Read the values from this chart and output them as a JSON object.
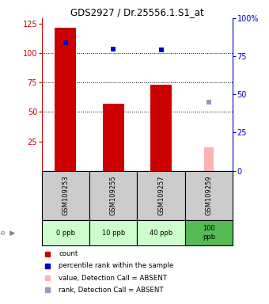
{
  "title": "GDS2927 / Dr.25556.1.S1_at",
  "samples": [
    "GSM109253",
    "GSM109255",
    "GSM109257",
    "GSM109259"
  ],
  "doses": [
    "0 ppb",
    "10 ppb",
    "40 ppb",
    "100\nppb"
  ],
  "bar_values": [
    122,
    57,
    73,
    null
  ],
  "bar_colors": [
    "#cc0000",
    "#cc0000",
    "#cc0000",
    null
  ],
  "absent_bar_value": 20,
  "absent_bar_idx": 3,
  "absent_bar_color": "#ffb3b3",
  "rank_values": [
    84,
    80,
    79,
    null
  ],
  "rank_indices": [
    0,
    1,
    2
  ],
  "rank_color": "#0000cc",
  "absent_rank_value": 45,
  "absent_rank_idx": 3,
  "absent_rank_color": "#9999bb",
  "ylim_left": [
    0,
    130
  ],
  "ylim_right": [
    0,
    100
  ],
  "yticks_left": [
    25,
    50,
    75,
    100,
    125
  ],
  "yticks_right": [
    0,
    25,
    50,
    75,
    100
  ],
  "ytick_labels_right": [
    "0",
    "25",
    "50",
    "75",
    "100%"
  ],
  "left_axis_color": "#cc0000",
  "right_axis_color": "#0000cc",
  "sample_bg_color": "#cccccc",
  "dose_bg_color_light": "#ccffcc",
  "dose_bg_color_dark": "#55bb55",
  "legend_items": [
    {
      "color": "#cc0000",
      "label": "count"
    },
    {
      "color": "#0000cc",
      "label": "percentile rank within the sample"
    },
    {
      "color": "#ffb3b3",
      "label": "value, Detection Call = ABSENT"
    },
    {
      "color": "#9999bb",
      "label": "rank, Detection Call = ABSENT"
    }
  ]
}
